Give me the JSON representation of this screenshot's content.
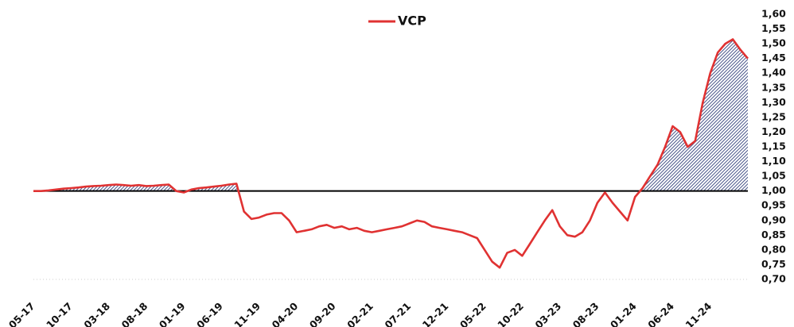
{
  "chart_data": {
    "type": "line",
    "categories": [
      "05-17",
      null,
      null,
      null,
      null,
      "10-17",
      null,
      null,
      null,
      null,
      "03-18",
      null,
      null,
      null,
      null,
      "08-18",
      null,
      null,
      null,
      null,
      "01-19",
      null,
      null,
      null,
      null,
      "06-19",
      null,
      null,
      null,
      null,
      "11-19",
      null,
      null,
      null,
      null,
      "04-20",
      null,
      null,
      null,
      null,
      "09-20",
      null,
      null,
      null,
      null,
      "02-21",
      null,
      null,
      null,
      null,
      "07-21",
      null,
      null,
      null,
      null,
      "12-21",
      null,
      null,
      null,
      null,
      "05-22",
      null,
      null,
      null,
      null,
      "10-22",
      null,
      null,
      null,
      null,
      "03-23",
      null,
      null,
      null,
      null,
      "08-23",
      null,
      null,
      null,
      null,
      "01-24",
      null,
      null,
      null,
      null,
      "06-24",
      null,
      null,
      null,
      null,
      "11-24",
      null,
      null,
      null,
      null,
      null
    ],
    "series": [
      {
        "name": "VCP",
        "color": "#e03232",
        "values": [
          1.0,
          1.0,
          1.002,
          1.005,
          1.008,
          1.01,
          1.012,
          1.015,
          1.017,
          1.018,
          1.02,
          1.022,
          1.02,
          1.018,
          1.02,
          1.017,
          1.018,
          1.02,
          1.022,
          1.0,
          0.995,
          1.005,
          1.01,
          1.012,
          1.015,
          1.018,
          1.022,
          1.025,
          0.93,
          0.905,
          0.91,
          0.92,
          0.925,
          0.925,
          0.9,
          0.86,
          0.865,
          0.87,
          0.88,
          0.885,
          0.875,
          0.88,
          0.87,
          0.875,
          0.865,
          0.86,
          0.865,
          0.87,
          0.875,
          0.88,
          0.89,
          0.9,
          0.895,
          0.88,
          0.875,
          0.87,
          0.865,
          0.86,
          0.85,
          0.84,
          0.8,
          0.76,
          0.74,
          0.79,
          0.8,
          0.78,
          0.82,
          0.86,
          0.9,
          0.935,
          0.88,
          0.85,
          0.845,
          0.86,
          0.9,
          0.96,
          0.995,
          0.96,
          0.93,
          0.9,
          0.98,
          1.01,
          1.05,
          1.09,
          1.15,
          1.22,
          1.2,
          1.15,
          1.17,
          1.3,
          1.4,
          1.47,
          1.5,
          1.515,
          1.48,
          1.45
        ]
      }
    ],
    "baseline": 1,
    "fill_color": "#1a2a6c",
    "ylim": [
      0.7,
      1.6
    ],
    "yticks": [
      {
        "value": 0.7,
        "label": "0,70"
      },
      {
        "value": 0.75,
        "label": "0,75"
      },
      {
        "value": 0.8,
        "label": "0,80"
      },
      {
        "value": 0.85,
        "label": "0,85"
      },
      {
        "value": 0.9,
        "label": "0,90"
      },
      {
        "value": 0.95,
        "label": "0,95"
      },
      {
        "value": 1.0,
        "label": "1,00"
      },
      {
        "value": 1.05,
        "label": "1,05"
      },
      {
        "value": 1.1,
        "label": "1,10"
      },
      {
        "value": 1.15,
        "label": "1,15"
      },
      {
        "value": 1.2,
        "label": "1,20"
      },
      {
        "value": 1.25,
        "label": "1,25"
      },
      {
        "value": 1.3,
        "label": "1,30"
      },
      {
        "value": 1.35,
        "label": "1,35"
      },
      {
        "value": 1.4,
        "label": "1,40"
      },
      {
        "value": 1.45,
        "label": "1,45"
      },
      {
        "value": 1.5,
        "label": "1,50"
      },
      {
        "value": 1.55,
        "label": "1,55"
      },
      {
        "value": 1.6,
        "label": "1,60"
      }
    ],
    "legend": "top"
  }
}
